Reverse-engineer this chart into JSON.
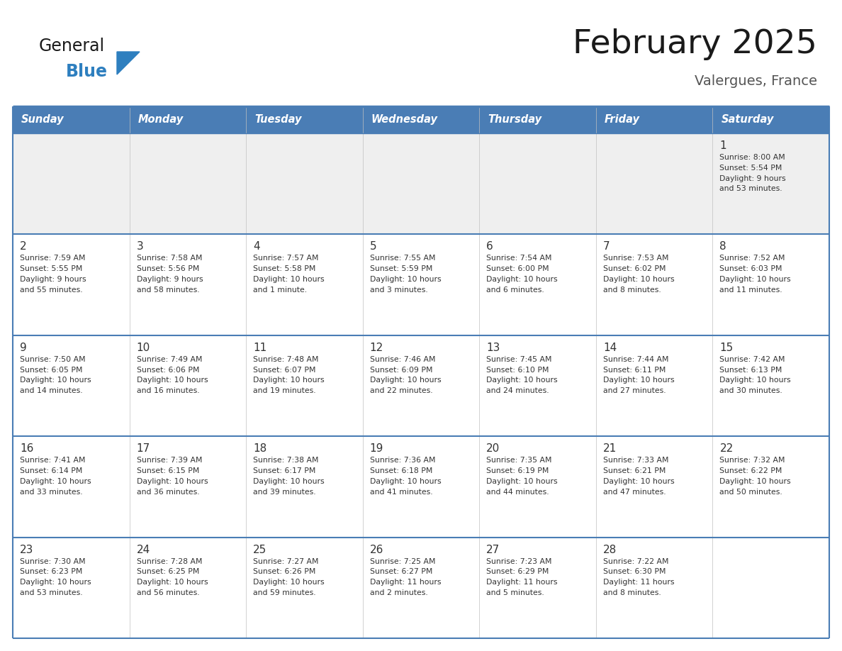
{
  "title": "February 2025",
  "subtitle": "Valergues, France",
  "header_bg": "#4A7DB5",
  "header_text": "#FFFFFF",
  "header_days": [
    "Sunday",
    "Monday",
    "Tuesday",
    "Wednesday",
    "Thursday",
    "Friday",
    "Saturday"
  ],
  "row1_bg": "#EFEFEF",
  "row_bg": "#FFFFFF",
  "cell_text_color": "#333333",
  "day_num_color": "#333333",
  "border_color": "#4A7DB5",
  "divider_color": "#C0C0C0",
  "title_color": "#1A1A1A",
  "subtitle_color": "#555555",
  "logo_general_color": "#1A1A1A",
  "logo_blue_color": "#2E7FBF",
  "logo_triangle_color": "#2E7FBF",
  "calendar": [
    [
      null,
      null,
      null,
      null,
      null,
      null,
      1
    ],
    [
      2,
      3,
      4,
      5,
      6,
      7,
      8
    ],
    [
      9,
      10,
      11,
      12,
      13,
      14,
      15
    ],
    [
      16,
      17,
      18,
      19,
      20,
      21,
      22
    ],
    [
      23,
      24,
      25,
      26,
      27,
      28,
      null
    ]
  ],
  "cell_data": {
    "1": {
      "sunrise": "8:00 AM",
      "sunset": "5:54 PM",
      "daylight": "9 hours\nand 53 minutes."
    },
    "2": {
      "sunrise": "7:59 AM",
      "sunset": "5:55 PM",
      "daylight": "9 hours\nand 55 minutes."
    },
    "3": {
      "sunrise": "7:58 AM",
      "sunset": "5:56 PM",
      "daylight": "9 hours\nand 58 minutes."
    },
    "4": {
      "sunrise": "7:57 AM",
      "sunset": "5:58 PM",
      "daylight": "10 hours\nand 1 minute."
    },
    "5": {
      "sunrise": "7:55 AM",
      "sunset": "5:59 PM",
      "daylight": "10 hours\nand 3 minutes."
    },
    "6": {
      "sunrise": "7:54 AM",
      "sunset": "6:00 PM",
      "daylight": "10 hours\nand 6 minutes."
    },
    "7": {
      "sunrise": "7:53 AM",
      "sunset": "6:02 PM",
      "daylight": "10 hours\nand 8 minutes."
    },
    "8": {
      "sunrise": "7:52 AM",
      "sunset": "6:03 PM",
      "daylight": "10 hours\nand 11 minutes."
    },
    "9": {
      "sunrise": "7:50 AM",
      "sunset": "6:05 PM",
      "daylight": "10 hours\nand 14 minutes."
    },
    "10": {
      "sunrise": "7:49 AM",
      "sunset": "6:06 PM",
      "daylight": "10 hours\nand 16 minutes."
    },
    "11": {
      "sunrise": "7:48 AM",
      "sunset": "6:07 PM",
      "daylight": "10 hours\nand 19 minutes."
    },
    "12": {
      "sunrise": "7:46 AM",
      "sunset": "6:09 PM",
      "daylight": "10 hours\nand 22 minutes."
    },
    "13": {
      "sunrise": "7:45 AM",
      "sunset": "6:10 PM",
      "daylight": "10 hours\nand 24 minutes."
    },
    "14": {
      "sunrise": "7:44 AM",
      "sunset": "6:11 PM",
      "daylight": "10 hours\nand 27 minutes."
    },
    "15": {
      "sunrise": "7:42 AM",
      "sunset": "6:13 PM",
      "daylight": "10 hours\nand 30 minutes."
    },
    "16": {
      "sunrise": "7:41 AM",
      "sunset": "6:14 PM",
      "daylight": "10 hours\nand 33 minutes."
    },
    "17": {
      "sunrise": "7:39 AM",
      "sunset": "6:15 PM",
      "daylight": "10 hours\nand 36 minutes."
    },
    "18": {
      "sunrise": "7:38 AM",
      "sunset": "6:17 PM",
      "daylight": "10 hours\nand 39 minutes."
    },
    "19": {
      "sunrise": "7:36 AM",
      "sunset": "6:18 PM",
      "daylight": "10 hours\nand 41 minutes."
    },
    "20": {
      "sunrise": "7:35 AM",
      "sunset": "6:19 PM",
      "daylight": "10 hours\nand 44 minutes."
    },
    "21": {
      "sunrise": "7:33 AM",
      "sunset": "6:21 PM",
      "daylight": "10 hours\nand 47 minutes."
    },
    "22": {
      "sunrise": "7:32 AM",
      "sunset": "6:22 PM",
      "daylight": "10 hours\nand 50 minutes."
    },
    "23": {
      "sunrise": "7:30 AM",
      "sunset": "6:23 PM",
      "daylight": "10 hours\nand 53 minutes."
    },
    "24": {
      "sunrise": "7:28 AM",
      "sunset": "6:25 PM",
      "daylight": "10 hours\nand 56 minutes."
    },
    "25": {
      "sunrise": "7:27 AM",
      "sunset": "6:26 PM",
      "daylight": "10 hours\nand 59 minutes."
    },
    "26": {
      "sunrise": "7:25 AM",
      "sunset": "6:27 PM",
      "daylight": "11 hours\nand 2 minutes."
    },
    "27": {
      "sunrise": "7:23 AM",
      "sunset": "6:29 PM",
      "daylight": "11 hours\nand 5 minutes."
    },
    "28": {
      "sunrise": "7:22 AM",
      "sunset": "6:30 PM",
      "daylight": "11 hours\nand 8 minutes."
    }
  }
}
